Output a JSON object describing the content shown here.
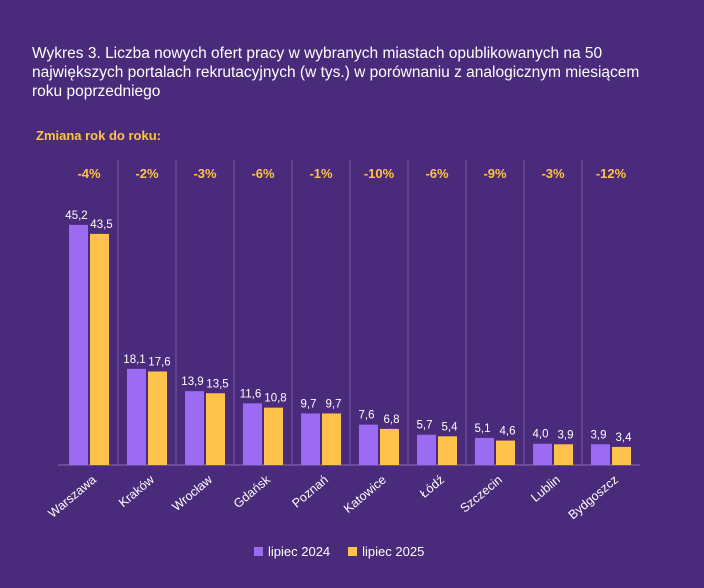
{
  "title": "Wykres 3. Liczba nowych ofert pracy w wybranych miastach opublikowanych na 50 największych portalach rekrutacyjnych (w tys.) w porównaniu z analogicznym miesiącem roku poprzedniego",
  "yoy_label": "Zmiana rok do roku:",
  "colors": {
    "series_2024": "#9b6cf2",
    "series_2025": "#ffc24b",
    "yoy": "#ffc24b",
    "background": "#4a2a7a"
  },
  "chart_data": {
    "type": "bar",
    "title": "Wykres 3. Liczba nowych ofert pracy w wybranych miastach opublikowanych na 50 największych portalach rekrutacyjnych (w tys.) w porównaniu z analogicznym miesiącem roku poprzedniego",
    "categories": [
      "Warszawa",
      "Kraków",
      "Wrocław",
      "Gdańsk",
      "Poznań",
      "Katowice",
      "Łódź",
      "Szczecin",
      "Lublin",
      "Bydgoszcz"
    ],
    "series": [
      {
        "name": "lipiec 2024",
        "values": [
          45.2,
          18.1,
          13.9,
          11.6,
          9.7,
          7.6,
          5.7,
          5.1,
          4.0,
          3.9
        ],
        "labels": [
          "45,2",
          "18,1",
          "13,9",
          "11,6",
          "9,7",
          "7,6",
          "5,7",
          "5,1",
          "4,0",
          "3,9"
        ]
      },
      {
        "name": "lipiec 2025",
        "values": [
          43.5,
          17.6,
          13.5,
          10.8,
          9.7,
          6.8,
          5.4,
          4.6,
          3.9,
          3.4
        ],
        "labels": [
          "43,5",
          "17,6",
          "13,5",
          "10,8",
          "9,7",
          "6,8",
          "5,4",
          "4,6",
          "3,9",
          "3,4"
        ]
      }
    ],
    "yoy_change": [
      "-4%",
      "-2%",
      "-3%",
      "-6%",
      "-1%",
      "-10%",
      "-6%",
      "-9%",
      "-3%",
      "-12%"
    ],
    "ylim": [
      0,
      50
    ],
    "grid": false,
    "legend": "bottom-center"
  }
}
